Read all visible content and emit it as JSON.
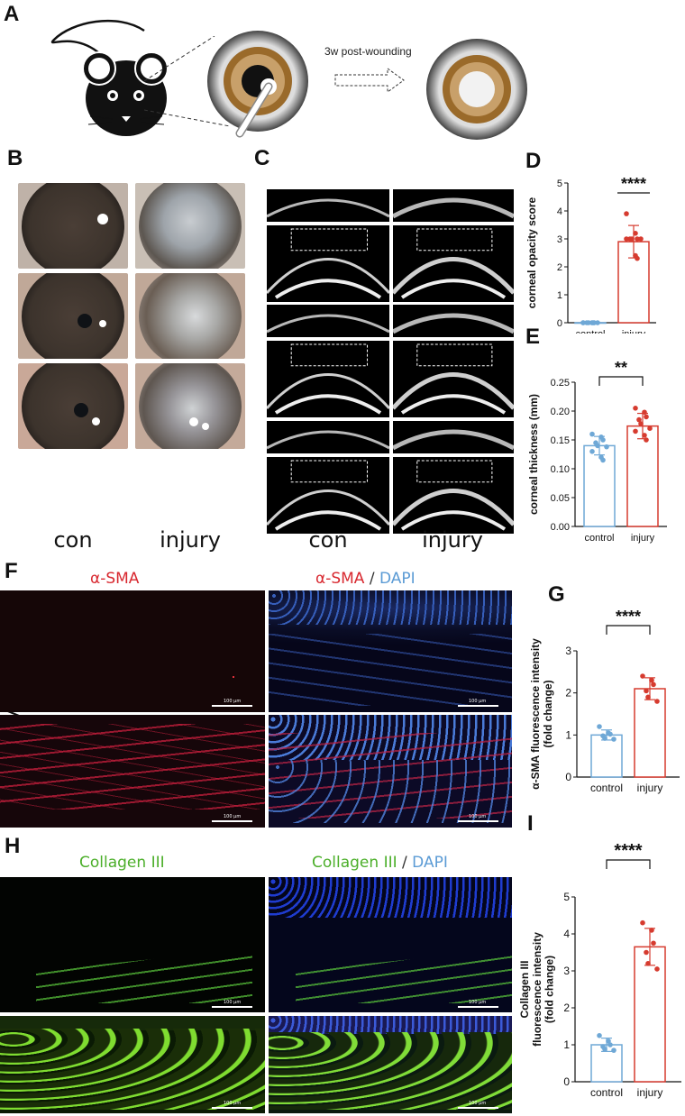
{
  "panels": {
    "A": "A",
    "B": "B",
    "C": "C",
    "D": "D",
    "E": "E",
    "F": "F",
    "G": "G",
    "H": "H",
    "I": "I"
  },
  "schematic": {
    "arrow_text": "3w post-wounding"
  },
  "labels": {
    "con": "con",
    "injury": "injury",
    "asma": "α-SMA",
    "slash": " / ",
    "dapi": "DAPI",
    "collagen": "Collagen III",
    "scale": "100 μm"
  },
  "colors": {
    "control": "#6fa8d6",
    "injury": "#d63b2f",
    "asma": "#d8282f",
    "dapi": "#5b9bd5",
    "collagen": "#4caf2a"
  },
  "chart_data": [
    {
      "id": "D",
      "type": "bar",
      "categories": [
        "control",
        "injury"
      ],
      "values": [
        0,
        2.9
      ],
      "errors": [
        0,
        0.58
      ],
      "points": [
        [
          0,
          0,
          0,
          0,
          0,
          0,
          0,
          0,
          0
        ],
        [
          3.9,
          3.2,
          3.0,
          3.0,
          3.0,
          3.0,
          3.0,
          2.4,
          2.3
        ]
      ],
      "ylabel": "corneal opacity score",
      "ylim": [
        0,
        5
      ],
      "yticks": [
        0,
        1,
        2,
        3,
        4,
        5
      ],
      "yticklabels": [
        "0",
        "1",
        "2",
        "3",
        "4",
        "5"
      ],
      "significance": "****"
    },
    {
      "id": "E",
      "type": "bar",
      "categories": [
        "control",
        "injury"
      ],
      "values": [
        0.14,
        0.174
      ],
      "errors": [
        0.016,
        0.022
      ],
      "points": [
        [
          0.16,
          0.155,
          0.15,
          0.145,
          0.14,
          0.138,
          0.13,
          0.12,
          0.115
        ],
        [
          0.205,
          0.198,
          0.19,
          0.185,
          0.178,
          0.17,
          0.165,
          0.158,
          0.15
        ]
      ],
      "ylabel": "corneal thickness (mm)",
      "ylim": [
        0,
        0.25
      ],
      "yticks": [
        0,
        0.05,
        0.1,
        0.15,
        0.2,
        0.25
      ],
      "yticklabels": [
        "0.00",
        "0.05",
        "0.10",
        "0.15",
        "0.20",
        "0.25"
      ],
      "significance": "**"
    },
    {
      "id": "G",
      "type": "bar",
      "categories": [
        "control",
        "injury"
      ],
      "values": [
        1.0,
        2.1
      ],
      "errors": [
        0.12,
        0.26
      ],
      "points": [
        [
          1.2,
          1.05,
          1.02,
          0.98,
          0.92,
          0.9
        ],
        [
          2.4,
          2.3,
          2.2,
          2.05,
          1.9,
          1.8
        ]
      ],
      "ylabel": "α-SMA fluorescence intensity (fold change)",
      "ylabel_lines": [
        "α-SMA fluorescence intensity",
        "(fold change)"
      ],
      "ylim": [
        0,
        3
      ],
      "yticks": [
        0,
        1,
        2,
        3
      ],
      "yticklabels": [
        "0",
        "1",
        "2",
        "3"
      ],
      "significance": "****"
    },
    {
      "id": "I",
      "type": "bar",
      "categories": [
        "control",
        "injury"
      ],
      "values": [
        1.0,
        3.65
      ],
      "errors": [
        0.18,
        0.5
      ],
      "points": [
        [
          1.25,
          1.1,
          1.0,
          0.95,
          0.88,
          0.85
        ],
        [
          4.3,
          4.1,
          3.75,
          3.5,
          3.2,
          3.05
        ]
      ],
      "ylabel": "Collagen III fluorescence intensity (fold change)",
      "ylabel_lines": [
        "Collagen III",
        "fluorescence intensity",
        "(fold change)"
      ],
      "ylim": [
        0,
        5
      ],
      "yticks": [
        0,
        1,
        2,
        3,
        4,
        5
      ],
      "yticklabels": [
        "0",
        "1",
        "2",
        "3",
        "4",
        "5"
      ],
      "significance": "****"
    }
  ]
}
